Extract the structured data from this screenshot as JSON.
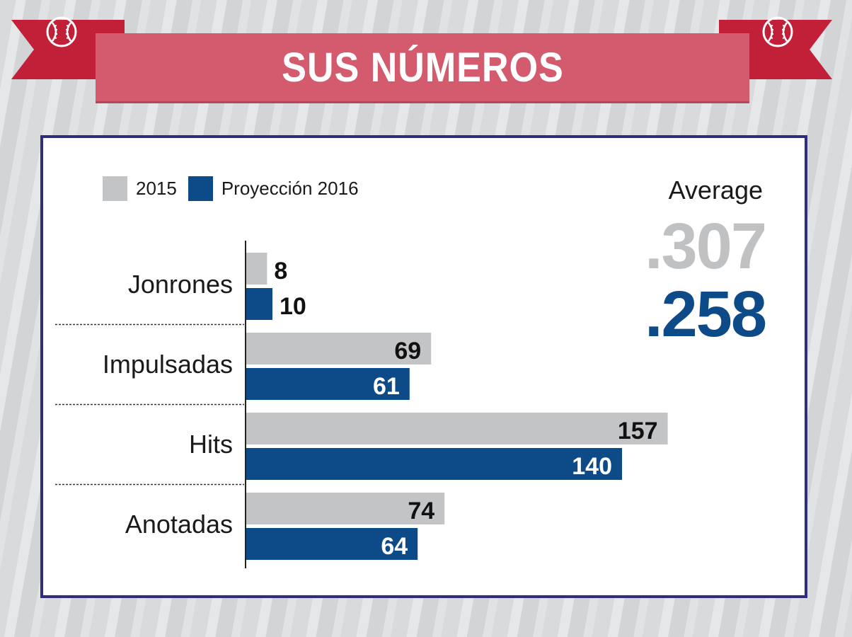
{
  "title": "SUS NÚMEROS",
  "average": {
    "label": "Average",
    "value_2015": ".307",
    "value_2016": ".258"
  },
  "colors": {
    "series_2015": "#c3c4c6",
    "series_2016": "#0d4a88",
    "banner": "#d45a6e",
    "ribbon": "#c21f38",
    "border": "#2e2e7c"
  },
  "chart_data": {
    "type": "bar",
    "orientation": "horizontal",
    "categories": [
      "Jonrones",
      "Impulsadas",
      "Hits",
      "Anotadas"
    ],
    "series": [
      {
        "name": "2015",
        "values": [
          8,
          69,
          157,
          74
        ]
      },
      {
        "name": "Proyección 2016",
        "values": [
          10,
          61,
          140,
          64
        ]
      }
    ],
    "xlim": [
      0,
      160
    ],
    "legend_position": "top-left",
    "grid": false
  }
}
